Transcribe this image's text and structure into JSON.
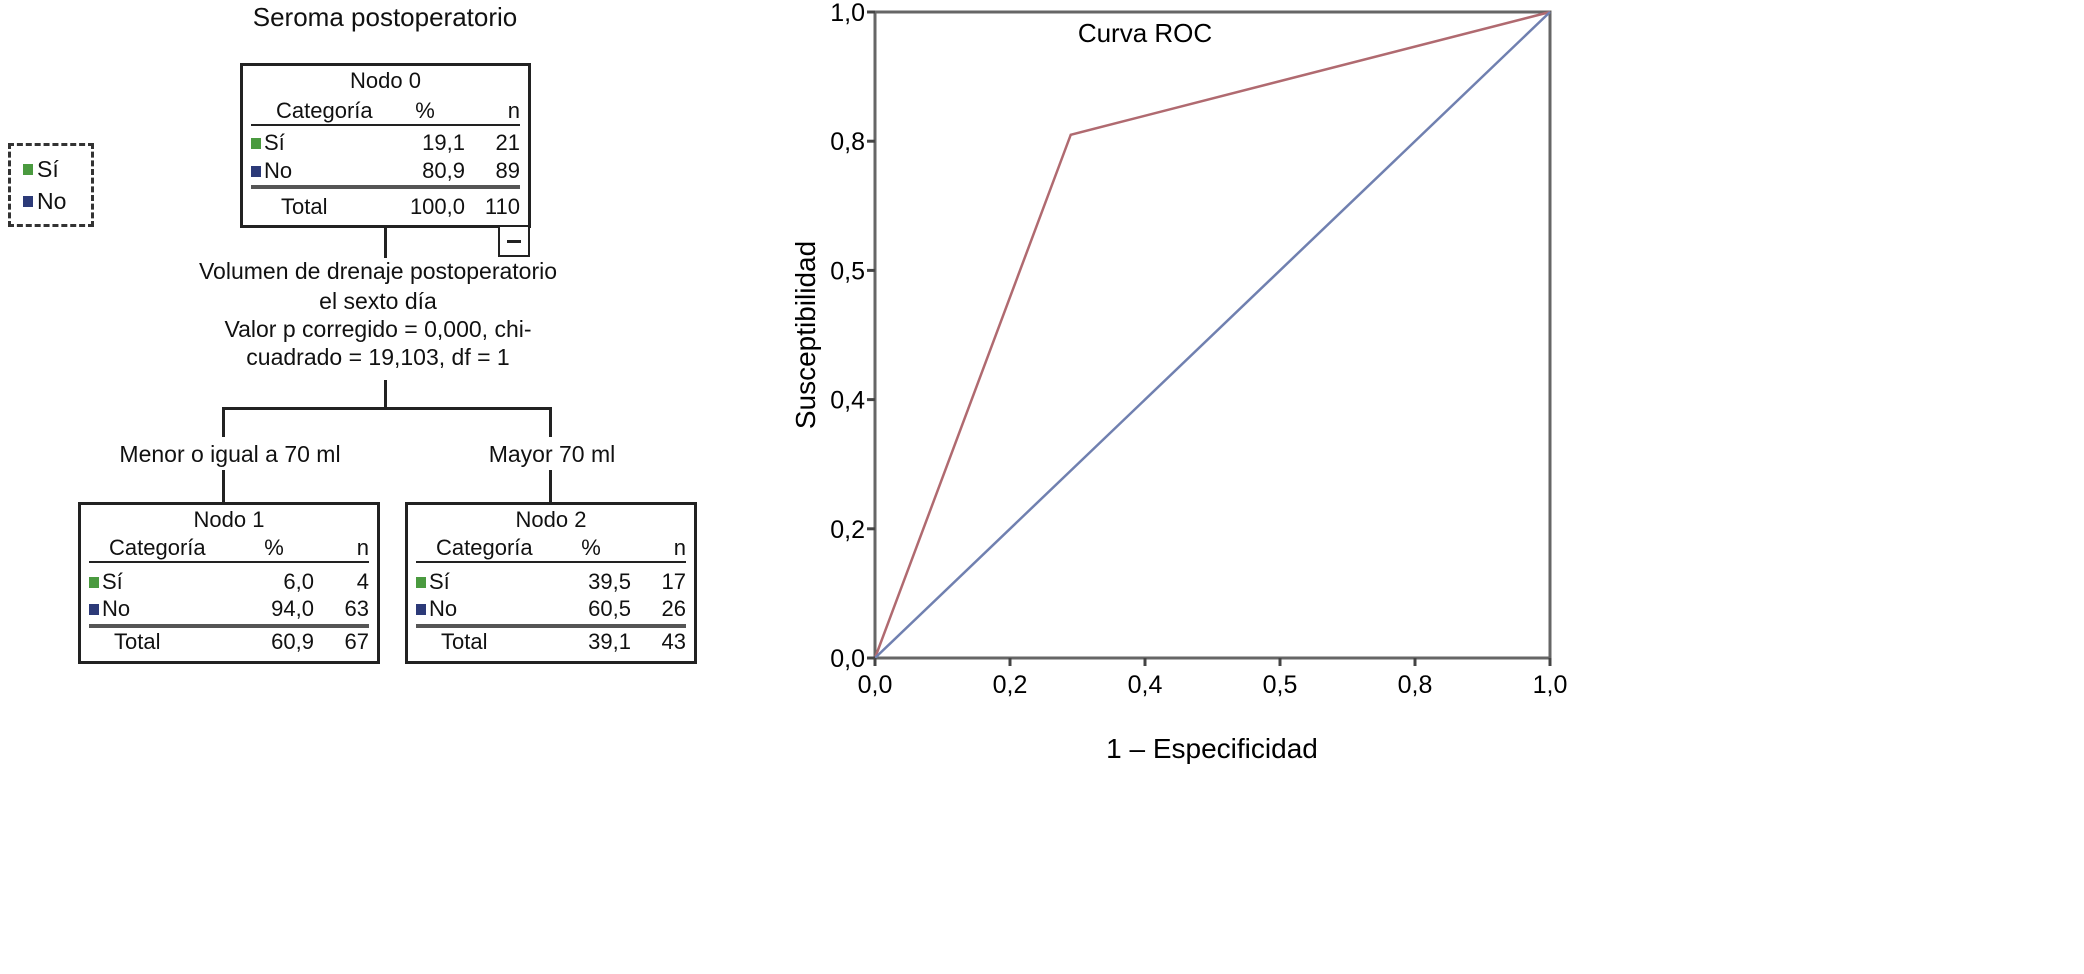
{
  "tree": {
    "title": "Seroma postoperatorio",
    "legend": [
      {
        "label": "Sí",
        "color": "#4a9a3f"
      },
      {
        "label": "No",
        "color": "#2c3a78"
      }
    ],
    "headers": {
      "category": "Categoría",
      "percent": "%",
      "n": "n"
    },
    "nodes": [
      {
        "name": "Nodo 0",
        "rows": [
          {
            "cat": "Sí",
            "pct": "19,1",
            "n": "21"
          },
          {
            "cat": "No",
            "pct": "80,9",
            "n": "89"
          }
        ],
        "total": {
          "label": "Total",
          "pct": "100,0",
          "n": "110"
        }
      },
      {
        "name": "Nodo 1",
        "rows": [
          {
            "cat": "Sí",
            "pct": "6,0",
            "n": "4"
          },
          {
            "cat": "No",
            "pct": "94,0",
            "n": "63"
          }
        ],
        "total": {
          "label": "Total",
          "pct": "60,9",
          "n": "67"
        }
      },
      {
        "name": "Nodo 2",
        "rows": [
          {
            "cat": "Sí",
            "pct": "39,5",
            "n": "17"
          },
          {
            "cat": "No",
            "pct": "60,5",
            "n": "26"
          }
        ],
        "total": {
          "label": "Total",
          "pct": "39,1",
          "n": "43"
        }
      }
    ],
    "split": {
      "lines": [
        "Volumen de  drenaje postoperatorio",
        "el sexto día",
        "Valor p corregido = 0,000, chi-",
        "cuadrado = 19,103, df = 1"
      ],
      "branches": [
        "Menor o igual a 70 ml",
        "Mayor 70 ml"
      ]
    }
  },
  "chart_data": {
    "type": "line",
    "title": "Curva ROC",
    "xlabel": "1 – Especificidad",
    "ylabel": "Susceptibilidad",
    "xlim": [
      0,
      1
    ],
    "ylim": [
      0,
      1
    ],
    "x_tick_labels": [
      "0,0",
      "0,2",
      "0,4",
      "0,5",
      "0,8",
      "1,0"
    ],
    "y_tick_labels": [
      "0,0",
      "0,2",
      "0,4",
      "0,5",
      "0,8",
      "1,0"
    ],
    "grid": false,
    "series": [
      {
        "color": "#b06a70",
        "x": [
          0,
          0.29,
          1
        ],
        "y": [
          0,
          0.81,
          1
        ]
      },
      {
        "color": "#7080b0",
        "x": [
          0,
          1
        ],
        "y": [
          0,
          1
        ]
      }
    ]
  }
}
